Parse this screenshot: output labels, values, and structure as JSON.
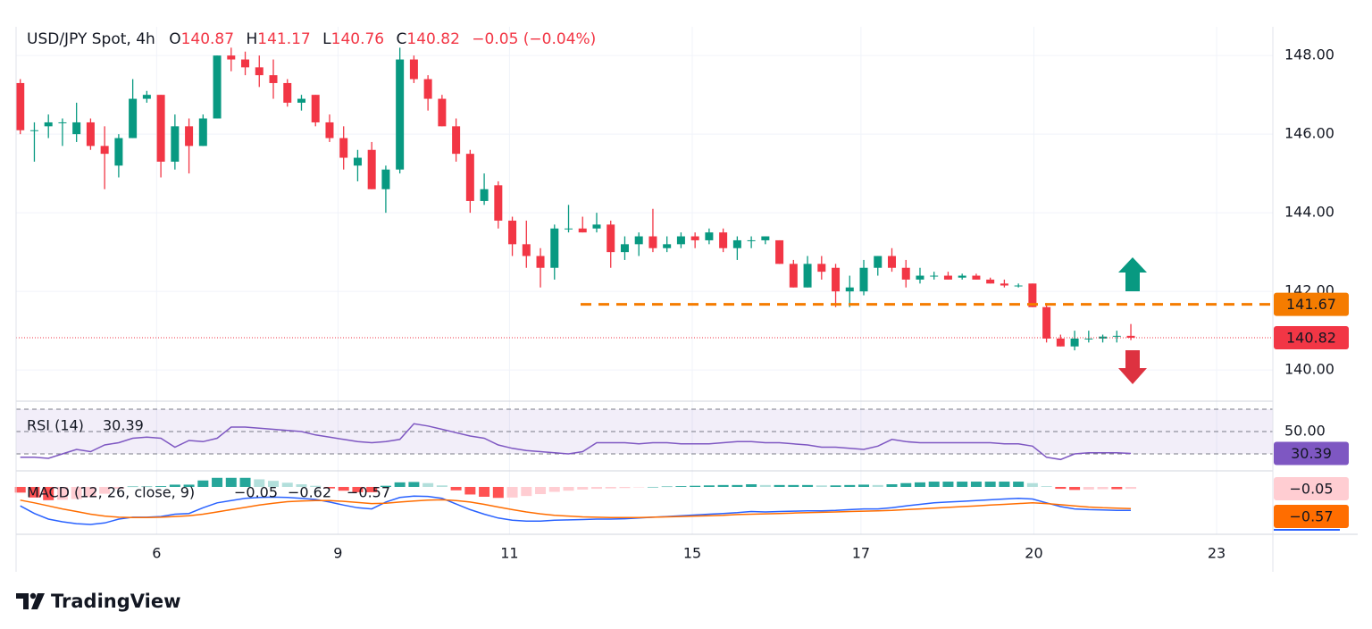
{
  "header": {
    "symbol": "USD/JPY Spot, 4h",
    "ohlc": [
      {
        "label": "O",
        "value": "140.87"
      },
      {
        "label": "H",
        "value": "141.17"
      },
      {
        "label": "L",
        "value": "140.76"
      },
      {
        "label": "C",
        "value": "140.82"
      }
    ],
    "change": "−0.05 (−0.04%)"
  },
  "chart_data": [
    {
      "type": "candlestick",
      "candles": [
        [
          147.3,
          147.4,
          146.0,
          146.1
        ],
        [
          146.1,
          146.3,
          145.3,
          146.1
        ],
        [
          146.2,
          146.5,
          145.9,
          146.3
        ],
        [
          146.3,
          146.4,
          145.7,
          146.3
        ],
        [
          146.0,
          146.8,
          145.8,
          146.3
        ],
        [
          146.3,
          146.4,
          145.6,
          145.7
        ],
        [
          145.7,
          146.2,
          144.6,
          145.5
        ],
        [
          145.2,
          146.0,
          144.9,
          145.9
        ],
        [
          145.9,
          147.4,
          145.9,
          146.9
        ],
        [
          146.9,
          147.1,
          146.8,
          147.0
        ],
        [
          147.0,
          147.0,
          144.9,
          145.3
        ],
        [
          145.3,
          146.5,
          145.1,
          146.2
        ],
        [
          146.2,
          146.4,
          145.0,
          145.7
        ],
        [
          145.7,
          146.5,
          145.7,
          146.4
        ],
        [
          146.4,
          148.0,
          146.4,
          148.0
        ],
        [
          148.0,
          148.2,
          147.6,
          147.9
        ],
        [
          147.9,
          148.1,
          147.5,
          147.7
        ],
        [
          147.7,
          148.0,
          147.2,
          147.5
        ],
        [
          147.5,
          147.9,
          146.9,
          147.3
        ],
        [
          147.3,
          147.4,
          146.7,
          146.8
        ],
        [
          146.8,
          147.0,
          146.6,
          146.9
        ],
        [
          147.0,
          147.0,
          146.2,
          146.3
        ],
        [
          146.3,
          146.5,
          145.8,
          145.9
        ],
        [
          145.9,
          146.2,
          145.1,
          145.4
        ],
        [
          145.2,
          145.6,
          144.8,
          145.4
        ],
        [
          145.6,
          145.8,
          144.6,
          144.6
        ],
        [
          144.6,
          145.2,
          144.0,
          145.1
        ],
        [
          145.1,
          148.2,
          145.0,
          147.9
        ],
        [
          147.9,
          148.0,
          147.3,
          147.4
        ],
        [
          147.4,
          147.5,
          146.6,
          146.9
        ],
        [
          146.9,
          147.0,
          146.2,
          146.2
        ],
        [
          146.2,
          146.4,
          145.3,
          145.5
        ],
        [
          145.5,
          145.6,
          144.0,
          144.3
        ],
        [
          144.3,
          145.0,
          144.2,
          144.6
        ],
        [
          144.7,
          144.8,
          143.6,
          143.8
        ],
        [
          143.8,
          143.9,
          142.9,
          143.2
        ],
        [
          143.2,
          143.8,
          142.6,
          142.9
        ],
        [
          142.9,
          143.1,
          142.1,
          142.6
        ],
        [
          142.6,
          143.7,
          142.3,
          143.6
        ],
        [
          143.6,
          144.2,
          143.5,
          143.6
        ],
        [
          143.6,
          143.9,
          143.5,
          143.5
        ],
        [
          143.6,
          144.0,
          143.5,
          143.7
        ],
        [
          143.7,
          143.8,
          142.6,
          143.0
        ],
        [
          143.0,
          143.4,
          142.8,
          143.2
        ],
        [
          143.2,
          143.5,
          142.9,
          143.4
        ],
        [
          143.4,
          144.1,
          143.0,
          143.1
        ],
        [
          143.1,
          143.4,
          143.0,
          143.2
        ],
        [
          143.2,
          143.5,
          143.1,
          143.4
        ],
        [
          143.4,
          143.5,
          143.1,
          143.3
        ],
        [
          143.3,
          143.6,
          143.2,
          143.5
        ],
        [
          143.5,
          143.6,
          143.0,
          143.1
        ],
        [
          143.1,
          143.4,
          142.8,
          143.3
        ],
        [
          143.3,
          143.4,
          143.1,
          143.3
        ],
        [
          143.3,
          143.4,
          143.2,
          143.4
        ],
        [
          143.3,
          143.3,
          142.7,
          142.7
        ],
        [
          142.7,
          142.8,
          142.1,
          142.1
        ],
        [
          142.1,
          142.9,
          142.1,
          142.7
        ],
        [
          142.7,
          142.9,
          142.3,
          142.5
        ],
        [
          142.6,
          142.7,
          141.6,
          142.0
        ],
        [
          142.0,
          142.4,
          141.6,
          142.1
        ],
        [
          142.0,
          142.8,
          141.9,
          142.6
        ],
        [
          142.6,
          142.9,
          142.4,
          142.9
        ],
        [
          142.9,
          143.1,
          142.5,
          142.6
        ],
        [
          142.6,
          142.8,
          142.1,
          142.3
        ],
        [
          142.3,
          142.6,
          142.2,
          142.4
        ],
        [
          142.4,
          142.5,
          142.3,
          142.4
        ],
        [
          142.4,
          142.5,
          142.3,
          142.3
        ],
        [
          142.35,
          142.45,
          142.3,
          142.4
        ],
        [
          142.4,
          142.45,
          142.3,
          142.3
        ],
        [
          142.3,
          142.35,
          142.2,
          142.2
        ],
        [
          142.2,
          142.3,
          142.1,
          142.15
        ],
        [
          142.15,
          142.2,
          142.1,
          142.15
        ],
        [
          142.2,
          142.2,
          141.6,
          141.6
        ],
        [
          141.6,
          141.7,
          140.7,
          140.8
        ],
        [
          140.8,
          140.9,
          140.6,
          140.6
        ],
        [
          140.6,
          141.0,
          140.5,
          140.8
        ],
        [
          140.8,
          141.0,
          140.7,
          140.8
        ],
        [
          140.8,
          140.9,
          140.7,
          140.85
        ],
        [
          140.85,
          141.0,
          140.7,
          140.87
        ],
        [
          140.87,
          141.17,
          140.76,
          140.82
        ]
      ],
      "colors": {
        "up": "#089981",
        "down": "#f23645"
      },
      "xlim": [
        -0.3,
        89.1
      ],
      "xticks": [
        {
          "value": 9.7,
          "label": "6"
        },
        {
          "value": 22.6,
          "label": "9"
        },
        {
          "value": 34.8,
          "label": "11"
        },
        {
          "value": 47.8,
          "label": "15"
        },
        {
          "value": 59.8,
          "label": "17"
        },
        {
          "value": 72.1,
          "label": "20"
        },
        {
          "value": 85.1,
          "label": "23"
        }
      ],
      "ylim": [
        139.23,
        148.39
      ],
      "yticks": [
        {
          "value": 140,
          "label": "140.00"
        },
        {
          "value": 142,
          "label": "142.00"
        },
        {
          "value": 144,
          "label": "144.00"
        },
        {
          "value": 146,
          "label": "146.00"
        },
        {
          "value": 148,
          "label": "148.00"
        }
      ],
      "grid": true,
      "level": {
        "value": 141.67,
        "label": "141.67",
        "color": "#f57c00"
      },
      "last": {
        "value": 140.82,
        "label": "140.82",
        "color": "#f23645"
      }
    },
    {
      "type": "line",
      "title": "RSI (14)",
      "last_label": "30.39",
      "color": "#7e57c2",
      "values": [
        27,
        27,
        26,
        30,
        34,
        32,
        38,
        40,
        44,
        45,
        44,
        36,
        42,
        41,
        44,
        54,
        54,
        53,
        52,
        51,
        50,
        47,
        45,
        43,
        41,
        40,
        41,
        43,
        57,
        55,
        52,
        49,
        46,
        44,
        38,
        35,
        33,
        32,
        31,
        30,
        32,
        40,
        40,
        40,
        39,
        40,
        40,
        39,
        39,
        39,
        40,
        41,
        41,
        40,
        40,
        39,
        38,
        36,
        36,
        35,
        34,
        37,
        43,
        41,
        40,
        40,
        40,
        40,
        40,
        40,
        39,
        39,
        37,
        27,
        25,
        30,
        31,
        31,
        31,
        30.39
      ],
      "ylim": [
        16.4,
        74.8
      ],
      "yticks": [
        {
          "value": 50,
          "label": "50.00"
        }
      ],
      "levels": [
        70,
        50,
        30
      ]
    },
    {
      "type": "macd",
      "title": "MACD (12, 26, close, 9)",
      "ylim": [
        -1.25,
        0.4
      ],
      "histogram": {
        "label": "−0.05",
        "colors": [
          "#26a69a",
          "#b2dfdb",
          "#ff5252",
          "#ffcdd2"
        ],
        "values": [
          -0.15,
          -0.28,
          -0.35,
          -0.34,
          -0.32,
          -0.27,
          -0.18,
          -0.05,
          0.01,
          0.01,
          0.02,
          0.06,
          0.06,
          0.17,
          0.24,
          0.24,
          0.24,
          0.2,
          0.16,
          0.11,
          0.07,
          0.03,
          -0.04,
          -0.1,
          -0.14,
          -0.14,
          0.03,
          0.12,
          0.13,
          0.1,
          0.04,
          -0.09,
          -0.2,
          -0.26,
          -0.29,
          -0.28,
          -0.24,
          -0.19,
          -0.13,
          -0.1,
          -0.07,
          -0.05,
          -0.04,
          -0.03,
          -0.01,
          0,
          0.01,
          0.02,
          0.03,
          0.04,
          0.05,
          0.05,
          0.07,
          0.05,
          0.05,
          0.05,
          0.05,
          0.04,
          0.04,
          0.05,
          0.06,
          0.05,
          0.07,
          0.1,
          0.12,
          0.14,
          0.14,
          0.14,
          0.14,
          0.14,
          0.14,
          0.14,
          0.1,
          0.02,
          -0.05,
          -0.08,
          -0.07,
          -0.06,
          -0.06,
          -0.05
        ]
      },
      "macd": {
        "label": "−0.62",
        "color": "#2962ff",
        "values": [
          -0.5,
          -0.7,
          -0.85,
          -0.92,
          -0.97,
          -0.99,
          -0.95,
          -0.85,
          -0.8,
          -0.8,
          -0.78,
          -0.72,
          -0.7,
          -0.55,
          -0.42,
          -0.36,
          -0.3,
          -0.28,
          -0.27,
          -0.28,
          -0.3,
          -0.33,
          -0.4,
          -0.48,
          -0.55,
          -0.58,
          -0.4,
          -0.28,
          -0.24,
          -0.25,
          -0.3,
          -0.45,
          -0.6,
          -0.72,
          -0.82,
          -0.88,
          -0.9,
          -0.9,
          -0.88,
          -0.87,
          -0.86,
          -0.85,
          -0.85,
          -0.84,
          -0.82,
          -0.8,
          -0.78,
          -0.76,
          -0.74,
          -0.72,
          -0.7,
          -0.68,
          -0.65,
          -0.66,
          -0.65,
          -0.64,
          -0.63,
          -0.63,
          -0.62,
          -0.6,
          -0.58,
          -0.58,
          -0.55,
          -0.5,
          -0.46,
          -0.42,
          -0.4,
          -0.38,
          -0.36,
          -0.34,
          -0.32,
          -0.3,
          -0.32,
          -0.42,
          -0.52,
          -0.58,
          -0.6,
          -0.61,
          -0.62,
          -0.62
        ]
      },
      "signal": {
        "label": "−0.57",
        "color": "#ff6d00",
        "values": [
          -0.35,
          -0.42,
          -0.5,
          -0.58,
          -0.65,
          -0.72,
          -0.77,
          -0.8,
          -0.81,
          -0.81,
          -0.8,
          -0.78,
          -0.76,
          -0.72,
          -0.66,
          -0.6,
          -0.54,
          -0.48,
          -0.43,
          -0.39,
          -0.37,
          -0.36,
          -0.36,
          -0.38,
          -0.41,
          -0.44,
          -0.43,
          -0.4,
          -0.37,
          -0.35,
          -0.34,
          -0.36,
          -0.4,
          -0.46,
          -0.53,
          -0.6,
          -0.66,
          -0.71,
          -0.75,
          -0.77,
          -0.79,
          -0.8,
          -0.81,
          -0.81,
          -0.81,
          -0.8,
          -0.79,
          -0.78,
          -0.77,
          -0.76,
          -0.75,
          -0.73,
          -0.72,
          -0.71,
          -0.7,
          -0.69,
          -0.68,
          -0.67,
          -0.66,
          -0.65,
          -0.64,
          -0.63,
          -0.62,
          -0.6,
          -0.58,
          -0.56,
          -0.54,
          -0.52,
          -0.5,
          -0.48,
          -0.46,
          -0.44,
          -0.42,
          -0.44,
          -0.47,
          -0.5,
          -0.53,
          -0.55,
          -0.56,
          -0.57
        ]
      }
    }
  ],
  "brand": "TradingView"
}
